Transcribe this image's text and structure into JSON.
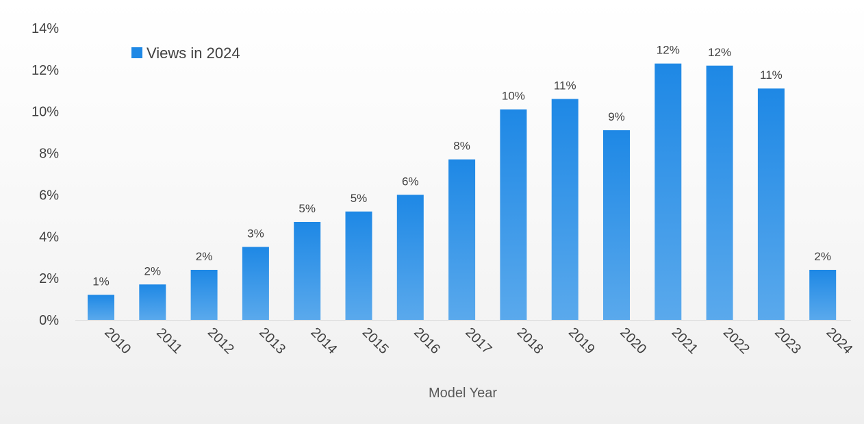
{
  "chart_data": {
    "type": "bar",
    "categories": [
      "2010",
      "2011",
      "2012",
      "2013",
      "2014",
      "2015",
      "2016",
      "2017",
      "2018",
      "2019",
      "2020",
      "2021",
      "2022",
      "2023",
      "2024"
    ],
    "series": [
      {
        "name": "Views in 2024",
        "values": [
          1.2,
          1.7,
          2.4,
          3.5,
          4.7,
          5.2,
          6.0,
          7.7,
          10.1,
          10.6,
          9.1,
          12.3,
          12.2,
          11.1,
          2.4
        ],
        "data_labels": [
          "1%",
          "2%",
          "2%",
          "3%",
          "5%",
          "5%",
          "6%",
          "8%",
          "10%",
          "11%",
          "9%",
          "12%",
          "12%",
          "11%",
          "2%"
        ]
      }
    ],
    "title": "",
    "xlabel": "Model Year",
    "ylabel": "",
    "ylim": [
      0,
      14
    ],
    "yticks": [
      0,
      2,
      4,
      6,
      8,
      10,
      12,
      14
    ],
    "ytick_labels": [
      "0%",
      "2%",
      "4%",
      "6%",
      "8%",
      "10%",
      "12%",
      "14%"
    ],
    "grid": false,
    "legend": "top-left",
    "colors": {
      "bar_top": "#1e88e5",
      "bar_bottom": "#5aa9ec",
      "axis_line": "#d9d9d9"
    }
  }
}
